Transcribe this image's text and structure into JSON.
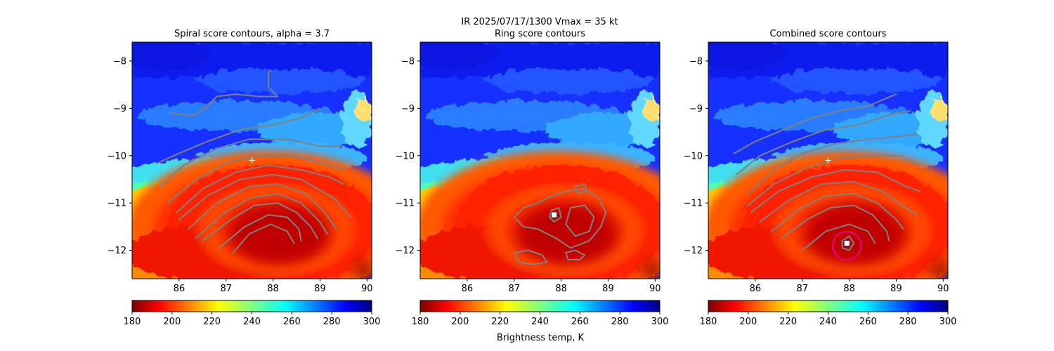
{
  "figure": {
    "suptitle_line1": "IR  2025/07/17/1300    Vmax = 35 kt",
    "colorbar_label": "Brightness temp, K"
  },
  "chart_data": [
    {
      "type": "heatmap",
      "title": "Spiral score contours, alpha =  3.7",
      "xlim": [
        85.0,
        90.1
      ],
      "ylim": [
        -12.6,
        -7.6
      ],
      "x_ticks": [
        86,
        87,
        88,
        89,
        90
      ],
      "y_ticks": [
        -8,
        -9,
        -10,
        -11,
        -12
      ],
      "x_tick_labels": [
        "86",
        "87",
        "88",
        "89",
        "90"
      ],
      "y_tick_labels": [
        "−8",
        "−9",
        "−10",
        "−11",
        "−12"
      ],
      "colormap": "jet_r",
      "colorbar_range": [
        180,
        300
      ],
      "colorbar_ticks": [
        "180",
        "200",
        "220",
        "240",
        "260",
        "280",
        "300"
      ],
      "contour_color": "#808080",
      "first_guess_marker": {
        "symbol": "+",
        "x": 87.55,
        "y": -10.1,
        "color": "#ffffff"
      },
      "contours": [
        [
          [
            85.55,
            -10.15
          ],
          [
            86.0,
            -9.95
          ],
          [
            86.6,
            -9.7
          ],
          [
            87.3,
            -9.45
          ],
          [
            88.0,
            -9.35
          ],
          [
            88.6,
            -9.2
          ],
          [
            89.0,
            -9.0
          ]
        ],
        [
          [
            85.6,
            -10.65
          ],
          [
            86.1,
            -10.2
          ],
          [
            86.8,
            -9.85
          ],
          [
            87.5,
            -9.65
          ],
          [
            88.3,
            -9.65
          ],
          [
            89.0,
            -9.8
          ],
          [
            89.5,
            -9.8
          ]
        ],
        [
          [
            85.75,
            -11.0
          ],
          [
            86.3,
            -10.55
          ],
          [
            87.0,
            -10.15
          ],
          [
            87.7,
            -10.0
          ],
          [
            88.4,
            -10.0
          ],
          [
            89.0,
            -10.15
          ],
          [
            89.5,
            -10.3
          ]
        ],
        [
          [
            85.95,
            -11.2
          ],
          [
            86.5,
            -10.7
          ],
          [
            87.2,
            -10.35
          ],
          [
            87.9,
            -10.2
          ],
          [
            88.6,
            -10.3
          ],
          [
            89.2,
            -10.45
          ],
          [
            89.5,
            -10.6
          ]
        ],
        [
          [
            86.0,
            -11.35
          ],
          [
            86.6,
            -10.85
          ],
          [
            87.3,
            -10.5
          ],
          [
            88.0,
            -10.4
          ],
          [
            88.6,
            -10.5
          ],
          [
            89.3,
            -10.9
          ],
          [
            89.65,
            -11.3
          ]
        ],
        [
          [
            86.2,
            -11.55
          ],
          [
            86.8,
            -11.0
          ],
          [
            87.5,
            -10.65
          ],
          [
            88.1,
            -10.6
          ],
          [
            88.7,
            -10.8
          ],
          [
            89.1,
            -11.2
          ],
          [
            89.35,
            -11.55
          ]
        ],
        [
          [
            86.35,
            -11.75
          ],
          [
            86.9,
            -11.25
          ],
          [
            87.5,
            -10.9
          ],
          [
            88.1,
            -10.8
          ],
          [
            88.6,
            -11.0
          ],
          [
            89.0,
            -11.4
          ],
          [
            89.15,
            -11.65
          ]
        ],
        [
          [
            86.5,
            -11.8
          ],
          [
            87.1,
            -11.35
          ],
          [
            87.6,
            -11.05
          ],
          [
            88.1,
            -11.0
          ],
          [
            88.5,
            -11.2
          ],
          [
            88.8,
            -11.5
          ],
          [
            88.95,
            -11.75
          ]
        ],
        [
          [
            86.85,
            -11.95
          ],
          [
            87.4,
            -11.5
          ],
          [
            87.9,
            -11.25
          ],
          [
            88.3,
            -11.3
          ],
          [
            88.55,
            -11.55
          ],
          [
            88.6,
            -11.8
          ]
        ],
        [
          [
            87.15,
            -12.05
          ],
          [
            87.5,
            -11.65
          ],
          [
            87.95,
            -11.45
          ],
          [
            88.3,
            -11.6
          ],
          [
            88.45,
            -11.85
          ]
        ],
        [
          [
            85.8,
            -9.1
          ],
          [
            86.3,
            -9.15
          ],
          [
            86.55,
            -9.0
          ],
          [
            86.8,
            -8.75
          ],
          [
            87.2,
            -8.7
          ],
          [
            87.7,
            -8.75
          ],
          [
            88.1,
            -8.75
          ],
          [
            87.9,
            -8.55
          ],
          [
            87.9,
            -8.25
          ],
          [
            87.95,
            -8.2
          ]
        ]
      ]
    },
    {
      "type": "heatmap",
      "title": "Ring score contours",
      "xlim": [
        85.0,
        90.1
      ],
      "ylim": [
        -12.6,
        -7.6
      ],
      "x_ticks": [
        86,
        87,
        88,
        89,
        90
      ],
      "y_ticks": [
        -8,
        -9,
        -10,
        -11,
        -12
      ],
      "x_tick_labels": [
        "86",
        "87",
        "88",
        "89",
        "90"
      ],
      "y_tick_labels": [
        "−8",
        "−9",
        "−10",
        "−11",
        "−12"
      ],
      "colormap": "jet_r",
      "colorbar_range": [
        180,
        300
      ],
      "colorbar_ticks": [
        "180",
        "200",
        "220",
        "240",
        "260",
        "280",
        "300"
      ],
      "contour_color": "#808080",
      "center_marker": {
        "symbol": "square",
        "x": 87.85,
        "y": -11.25,
        "color": "#ffffff"
      },
      "contours": [
        [
          [
            87.0,
            -11.3
          ],
          [
            87.2,
            -11.1
          ],
          [
            87.5,
            -11.0
          ],
          [
            87.8,
            -10.85
          ],
          [
            88.1,
            -10.75
          ],
          [
            88.5,
            -10.7
          ],
          [
            88.8,
            -10.9
          ],
          [
            88.95,
            -11.2
          ],
          [
            88.85,
            -11.5
          ],
          [
            88.6,
            -11.8
          ],
          [
            88.2,
            -11.95
          ],
          [
            87.9,
            -11.75
          ],
          [
            87.5,
            -11.55
          ],
          [
            87.2,
            -11.5
          ],
          [
            87.0,
            -11.3
          ]
        ],
        [
          [
            88.2,
            -11.1
          ],
          [
            88.5,
            -11.05
          ],
          [
            88.7,
            -11.3
          ],
          [
            88.6,
            -11.6
          ],
          [
            88.3,
            -11.7
          ],
          [
            88.1,
            -11.45
          ],
          [
            88.2,
            -11.1
          ]
        ],
        [
          [
            87.8,
            -11.15
          ],
          [
            87.95,
            -11.1
          ],
          [
            88.0,
            -11.3
          ],
          [
            87.85,
            -11.4
          ],
          [
            87.75,
            -11.3
          ],
          [
            87.8,
            -11.15
          ]
        ],
        [
          [
            87.0,
            -12.05
          ],
          [
            87.3,
            -12.0
          ],
          [
            87.6,
            -12.1
          ],
          [
            87.7,
            -12.25
          ],
          [
            87.4,
            -12.3
          ],
          [
            87.1,
            -12.25
          ],
          [
            87.0,
            -12.05
          ]
        ],
        [
          [
            88.1,
            -12.05
          ],
          [
            88.3,
            -12.0
          ],
          [
            88.5,
            -12.1
          ],
          [
            88.4,
            -12.2
          ],
          [
            88.15,
            -12.2
          ],
          [
            88.1,
            -12.05
          ]
        ],
        [
          [
            88.3,
            -10.65
          ],
          [
            88.5,
            -10.6
          ],
          [
            88.55,
            -10.75
          ],
          [
            88.35,
            -10.8
          ],
          [
            88.3,
            -10.65
          ]
        ]
      ]
    },
    {
      "type": "heatmap",
      "title": "Combined score contours",
      "xlim": [
        85.0,
        90.1
      ],
      "ylim": [
        -12.6,
        -7.6
      ],
      "x_ticks": [
        86,
        87,
        88,
        89,
        90
      ],
      "y_ticks": [
        -8,
        -9,
        -10,
        -11,
        -12
      ],
      "x_tick_labels": [
        "86",
        "87",
        "88",
        "89",
        "90"
      ],
      "y_tick_labels": [
        "−8",
        "−9",
        "−10",
        "−11",
        "−12"
      ],
      "colormap": "jet_r",
      "colorbar_range": [
        180,
        300
      ],
      "colorbar_ticks": [
        "180",
        "200",
        "220",
        "240",
        "260",
        "280",
        "300"
      ],
      "contour_color": "#808080",
      "first_guess_marker": {
        "symbol": "+",
        "x": 87.55,
        "y": -10.1,
        "color": "#ffffff"
      },
      "center_marker": {
        "symbol": "square",
        "x": 87.95,
        "y": -11.85,
        "color": "#ffffff"
      },
      "uncertainty_circle": {
        "x": 87.95,
        "y": -11.9,
        "radius_deg": 0.3,
        "color": "#e6008c"
      },
      "contours": [
        [
          [
            85.55,
            -9.95
          ],
          [
            86.0,
            -9.7
          ],
          [
            86.6,
            -9.45
          ],
          [
            87.2,
            -9.2
          ],
          [
            87.8,
            -9.05
          ],
          [
            88.4,
            -8.95
          ],
          [
            89.0,
            -8.7
          ]
        ],
        [
          [
            85.6,
            -10.4
          ],
          [
            86.1,
            -10.0
          ],
          [
            86.8,
            -9.7
          ],
          [
            87.5,
            -9.45
          ],
          [
            88.2,
            -9.35
          ],
          [
            88.8,
            -9.15
          ],
          [
            89.3,
            -9.05
          ]
        ],
        [
          [
            85.85,
            -10.8
          ],
          [
            86.4,
            -10.3
          ],
          [
            87.0,
            -9.95
          ],
          [
            87.7,
            -9.75
          ],
          [
            88.4,
            -9.65
          ],
          [
            89.0,
            -9.6
          ],
          [
            89.45,
            -9.55
          ]
        ],
        [
          [
            85.85,
            -11.05
          ],
          [
            86.4,
            -10.6
          ],
          [
            87.1,
            -10.25
          ],
          [
            87.8,
            -10.05
          ],
          [
            88.5,
            -10.0
          ],
          [
            89.1,
            -10.0
          ],
          [
            89.5,
            -10.2
          ]
        ],
        [
          [
            85.9,
            -11.2
          ],
          [
            86.5,
            -10.75
          ],
          [
            87.2,
            -10.45
          ],
          [
            87.9,
            -10.3
          ],
          [
            88.6,
            -10.35
          ],
          [
            89.2,
            -10.65
          ],
          [
            89.5,
            -10.75
          ]
        ],
        [
          [
            86.1,
            -11.4
          ],
          [
            86.7,
            -10.95
          ],
          [
            87.4,
            -10.6
          ],
          [
            88.1,
            -10.55
          ],
          [
            88.7,
            -10.75
          ],
          [
            89.2,
            -11.1
          ],
          [
            89.45,
            -11.25
          ]
        ],
        [
          [
            86.35,
            -11.6
          ],
          [
            86.9,
            -11.15
          ],
          [
            87.5,
            -10.85
          ],
          [
            88.1,
            -10.8
          ],
          [
            88.6,
            -11.0
          ],
          [
            89.0,
            -11.35
          ],
          [
            89.15,
            -11.55
          ]
        ],
        [
          [
            86.55,
            -11.75
          ],
          [
            87.1,
            -11.35
          ],
          [
            87.6,
            -11.1
          ],
          [
            88.1,
            -11.05
          ],
          [
            88.5,
            -11.25
          ],
          [
            88.8,
            -11.6
          ],
          [
            88.85,
            -11.8
          ]
        ],
        [
          [
            87.0,
            -12.0
          ],
          [
            87.5,
            -11.6
          ],
          [
            88.0,
            -11.45
          ],
          [
            88.4,
            -11.6
          ],
          [
            88.55,
            -11.85
          ]
        ],
        [
          [
            87.85,
            -11.8
          ],
          [
            88.0,
            -11.7
          ],
          [
            88.1,
            -11.85
          ],
          [
            88.0,
            -12.0
          ],
          [
            87.85,
            -11.95
          ],
          [
            87.85,
            -11.8
          ]
        ]
      ]
    }
  ]
}
